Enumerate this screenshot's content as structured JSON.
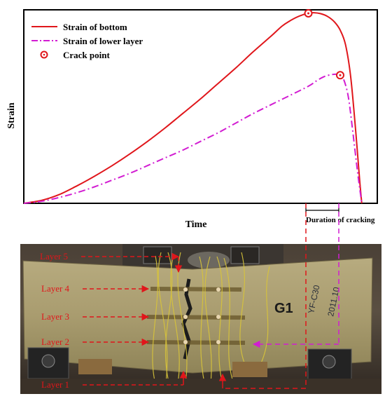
{
  "colors": {
    "bottom_series": "#e0161b",
    "lower_layer_series": "#d21dd2",
    "crack_marker": "#e0161b",
    "layer_labels": "#e0161b"
  },
  "chart_data": {
    "type": "line",
    "title": "",
    "xlabel": "Time",
    "ylabel": "Strain",
    "x_ticks": "none",
    "y_ticks": "none",
    "xlim": [
      0,
      100
    ],
    "ylim": [
      0,
      100
    ],
    "grid": false,
    "legend_position": "top-left",
    "series": [
      {
        "name": "Strain of bottom",
        "style": "solid",
        "color": "#e0161b",
        "x": [
          0,
          5,
          10,
          15,
          20,
          25,
          30,
          35,
          40,
          45,
          50,
          55,
          60,
          65,
          70,
          73,
          75,
          77,
          79,
          80.5,
          82,
          84,
          86,
          88,
          89.5,
          91,
          92.5,
          94,
          95,
          95.6
        ],
        "y": [
          0,
          1.5,
          4.5,
          9,
          14,
          19.5,
          25.5,
          32,
          39,
          46.5,
          54,
          62,
          70,
          78.5,
          86.5,
          91.5,
          94,
          96,
          97.5,
          98.2,
          98.5,
          98,
          96.5,
          93.5,
          89.5,
          82,
          65,
          35,
          12,
          0
        ]
      },
      {
        "name": "Strain of lower layer",
        "style": "dash-dot",
        "color": "#d21dd2",
        "x": [
          0,
          5,
          10,
          15,
          20,
          25,
          30,
          35,
          40,
          45,
          50,
          55,
          60,
          65,
          70,
          75,
          80.5,
          83,
          85,
          87,
          88.5,
          89.5,
          90.5,
          91.8,
          93,
          94.5,
          95.6
        ],
        "y": [
          0,
          1,
          3,
          5.5,
          8.5,
          12,
          15.5,
          19.5,
          23.5,
          27.5,
          32,
          36.5,
          41.5,
          46.5,
          51,
          55.5,
          60.5,
          63.5,
          65.5,
          66.5,
          66.7,
          66.2,
          64,
          55,
          38,
          15,
          0
        ]
      }
    ],
    "crack_points": [
      {
        "x": 80.5,
        "y": 98.2,
        "series": "Strain of bottom"
      },
      {
        "x": 89.5,
        "y": 66.2,
        "series": "Strain of lower layer"
      }
    ],
    "legend": [
      {
        "label": "Strain of bottom",
        "style": "solid"
      },
      {
        "label": "Strain of lower layer",
        "style": "dash-dot"
      },
      {
        "label": "Crack point",
        "style": "marker"
      }
    ],
    "annotations": {
      "duration": "Duration of cracking"
    }
  },
  "photo": {
    "layers": [
      {
        "label": "Layer 5"
      },
      {
        "label": "Layer 4"
      },
      {
        "label": "Layer 3"
      },
      {
        "label": "Layer 2"
      },
      {
        "label": "Layer 1"
      }
    ],
    "specimen_label": "G1",
    "specimen_note": "YF-C30",
    "specimen_date": "2011.10"
  }
}
